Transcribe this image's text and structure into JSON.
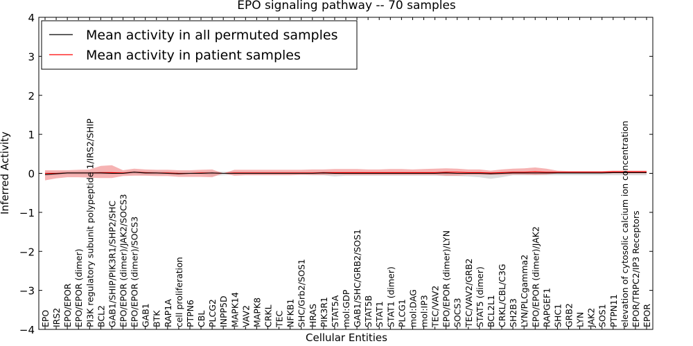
{
  "chart_data": {
    "type": "line",
    "title": "EPO signaling pathway -- 70 samples",
    "xlabel": "Cellular Entities",
    "ylabel": "Inferred Activity",
    "ylim": [
      -4,
      4
    ],
    "yticks": [
      "−4",
      "−3",
      "−2",
      "−1",
      "0",
      "1",
      "2",
      "3",
      "4"
    ],
    "legend_position": "top-left",
    "colors": {
      "permuted": "#000000",
      "patient": "#ff0000",
      "patient_band": "#f08080",
      "permuted_band": "#c0c0c0"
    },
    "categories": [
      "EPO",
      "IRS2",
      "EPO/EPOR",
      "EPO/EPOR (dimer)",
      "PI3K regulatory subunit polypeptide 1/IRS2/SHIP",
      "BCL2",
      "GAB1/SHIP/PIK3R1/SHP2/SHC",
      "EPO/EPOR (dimer)/JAK2/SOCS3",
      "EPO/EPOR (dimer)/SOCS3",
      "GAB1",
      "BTK",
      "RAP1A",
      "cell proliferation",
      "PTPN6",
      "CBL",
      "PLCG2",
      "INPP5D",
      "MAPK14",
      "VAV2",
      "MAPK8",
      "CRKL",
      "TEC",
      "NFKB1",
      "SHC/Grb2/SOS1",
      "HRAS",
      "PIK3R1",
      "STAT5A",
      "mol:GDP",
      "GAB1/SHC/GRB2/SOS1",
      "STAT5B",
      "STAT1",
      "STAT1 (dimer)",
      "PLCG1",
      "mol:DAG",
      "mol:IP3",
      "TEC/VAV2",
      "EPO/EPOR (dimer)/LYN",
      "SOCS3",
      "TEC/VAV2/GRB2",
      "STAT5 (dimer)",
      "BCL2L1",
      "CRKL/CBL/C3G",
      "SH2B3",
      "LYN/PLCgamma2",
      "EPO/EPOR (dimer)/JAK2",
      "RAPGEF1",
      "SHC1",
      "GRB2",
      "LYN",
      "JAK2",
      "SOS1",
      "PTPN11",
      "elevation of cytosolic calcium ion concentration",
      "EPOR/TRPC2/IP3 Receptors",
      "EPOR"
    ],
    "series": [
      {
        "name": "Mean activity in all permuted samples",
        "color": "#000000",
        "values": [
          -0.03,
          -0.01,
          0.01,
          0.01,
          0.01,
          0.01,
          0.0,
          0.0,
          0.03,
          0.01,
          0.01,
          0.0,
          -0.01,
          0.0,
          0.0,
          0.01,
          0.0,
          0.0,
          0.0,
          0.0,
          0.0,
          0.0,
          0.0,
          0.0,
          0.0,
          0.01,
          0.0,
          0.0,
          0.0,
          0.0,
          0.0,
          0.0,
          0.0,
          0.0,
          0.0,
          0.0,
          0.01,
          0.0,
          0.0,
          0.0,
          -0.01,
          0.0,
          0.01,
          0.01,
          0.01,
          0.01,
          0.01,
          0.01,
          0.01,
          0.01,
          0.01,
          0.02,
          0.02,
          0.02,
          0.02
        ],
        "band_low": [
          -0.06,
          -0.05,
          -0.03,
          -0.03,
          -0.03,
          -0.03,
          -0.03,
          -0.03,
          -0.02,
          -0.03,
          -0.03,
          -0.03,
          -0.04,
          -0.03,
          -0.03,
          -0.06,
          -0.05,
          -0.04,
          -0.04,
          -0.04,
          -0.04,
          -0.04,
          -0.04,
          -0.04,
          -0.05,
          -0.05,
          -0.08,
          -0.06,
          -0.06,
          -0.06,
          -0.06,
          -0.06,
          -0.06,
          -0.06,
          -0.06,
          -0.06,
          -0.07,
          -0.07,
          -0.08,
          -0.1,
          -0.14,
          -0.1,
          -0.05,
          -0.05,
          -0.05,
          -0.05,
          -0.05,
          -0.05,
          -0.05,
          -0.05,
          -0.05,
          -0.05,
          -0.05,
          -0.05,
          -0.05
        ],
        "band_high": [
          0.04,
          0.04,
          0.05,
          0.05,
          0.05,
          0.05,
          0.04,
          0.04,
          0.07,
          0.05,
          0.05,
          0.04,
          0.03,
          0.04,
          0.04,
          0.05,
          0.04,
          0.04,
          0.04,
          0.04,
          0.04,
          0.04,
          0.04,
          0.04,
          0.04,
          0.05,
          0.04,
          0.04,
          0.04,
          0.04,
          0.04,
          0.04,
          0.04,
          0.04,
          0.04,
          0.04,
          0.05,
          0.04,
          0.04,
          0.04,
          0.03,
          0.04,
          0.05,
          0.05,
          0.05,
          0.05,
          0.05,
          0.05,
          0.05,
          0.05,
          0.05,
          0.06,
          0.06,
          0.06,
          0.06
        ]
      },
      {
        "name": "Mean activity in patient samples",
        "color": "#ff0000",
        "values": [
          0.0,
          0.0,
          0.01,
          0.01,
          0.01,
          0.02,
          0.02,
          0.01,
          0.03,
          0.02,
          0.01,
          0.01,
          0.0,
          0.0,
          0.01,
          0.01,
          0.0,
          0.01,
          0.01,
          0.01,
          0.01,
          0.01,
          0.01,
          0.01,
          0.01,
          0.02,
          0.02,
          0.02,
          0.02,
          0.02,
          0.02,
          0.02,
          0.02,
          0.02,
          0.02,
          0.02,
          0.03,
          0.03,
          0.02,
          0.02,
          0.01,
          0.02,
          0.03,
          0.03,
          0.04,
          0.03,
          0.03,
          0.03,
          0.03,
          0.03,
          0.03,
          0.04,
          0.04,
          0.04,
          0.04
        ],
        "band_low": [
          -0.18,
          -0.13,
          -0.1,
          -0.1,
          -0.11,
          -0.12,
          -0.12,
          -0.07,
          -0.06,
          -0.06,
          -0.07,
          -0.07,
          -0.09,
          -0.09,
          -0.09,
          -0.1,
          0.0,
          -0.06,
          -0.05,
          -0.05,
          -0.05,
          -0.05,
          -0.05,
          -0.04,
          -0.04,
          -0.04,
          -0.03,
          -0.04,
          -0.04,
          -0.04,
          -0.04,
          -0.04,
          -0.04,
          -0.04,
          -0.04,
          -0.04,
          -0.06,
          -0.06,
          -0.04,
          -0.04,
          -0.04,
          -0.04,
          -0.03,
          -0.03,
          -0.04,
          -0.03,
          0.0,
          0.0,
          0.0,
          0.0,
          0.0,
          0.0,
          0.0,
          0.0,
          0.0
        ],
        "band_high": [
          0.08,
          0.08,
          0.08,
          0.09,
          0.1,
          0.19,
          0.21,
          0.08,
          0.12,
          0.1,
          0.09,
          0.09,
          0.08,
          0.08,
          0.09,
          0.1,
          0.0,
          0.09,
          0.09,
          0.09,
          0.09,
          0.09,
          0.09,
          0.09,
          0.1,
          0.1,
          0.11,
          0.11,
          0.11,
          0.1,
          0.1,
          0.11,
          0.11,
          0.1,
          0.11,
          0.12,
          0.13,
          0.12,
          0.1,
          0.1,
          0.07,
          0.1,
          0.12,
          0.13,
          0.15,
          0.12,
          0.07,
          0.06,
          0.06,
          0.06,
          0.06,
          0.07,
          0.07,
          0.07,
          0.07
        ]
      }
    ]
  }
}
